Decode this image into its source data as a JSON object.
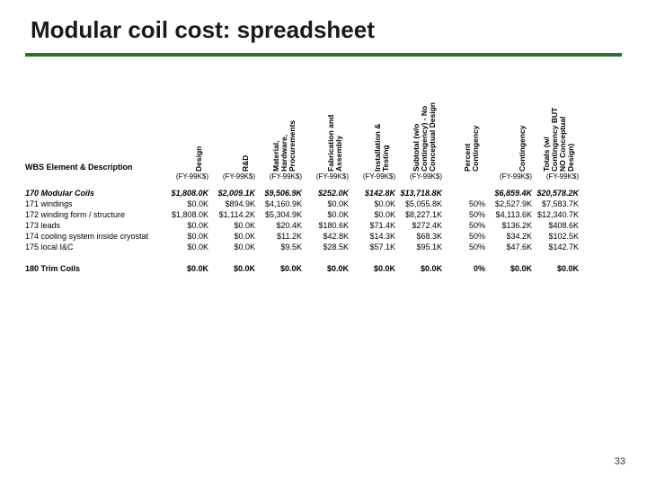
{
  "title": "Modular coil cost: spreadsheet",
  "page_number": "33",
  "colors": {
    "rule": "#2f6f2f",
    "text": "#000000",
    "bg": "#ffffff"
  },
  "headers": {
    "desc": "WBS Element & Description",
    "design": "Design",
    "rd": "R&D",
    "mat": "Material,\nHardware,\nProcurements",
    "fab": "Fabrication and\nAssembly",
    "inst": "Installation &\nTesting",
    "sub": "Subtotal (w/o\nContingency) - No\nConceptual Design",
    "pct": "Percent\nContingency",
    "cont": "Contingency",
    "tot": "Totals (w/\nContingency BUT\nNO Conceptual\nDesign)"
  },
  "unit": "(FY-99K$)",
  "rows": [
    {
      "bold": true,
      "ital": true,
      "desc": "170 Modular Coils",
      "design": "$1,808.0K",
      "rd": "$2,009.1K",
      "mat": "$9,506.9K",
      "fab": "$252.0K",
      "inst": "$142.8K",
      "sub": "$13,718.8K",
      "pct": "",
      "cont": "$6,859.4K",
      "tot": "$20,578.2K"
    },
    {
      "desc": "171 windings",
      "design": "$0.0K",
      "rd": "$894.9K",
      "mat": "$4,160.9K",
      "fab": "$0.0K",
      "inst": "$0.0K",
      "sub": "$5,055.8K",
      "pct": "50%",
      "cont": "$2,527.9K",
      "tot": "$7,583.7K"
    },
    {
      "desc": "172 winding form / structure",
      "design": "$1,808.0K",
      "rd": "$1,114.2K",
      "mat": "$5,304.9K",
      "fab": "$0.0K",
      "inst": "$0.0K",
      "sub": "$8,227.1K",
      "pct": "50%",
      "cont": "$4,113.6K",
      "tot": "$12,340.7K"
    },
    {
      "desc": "173 leads",
      "design": "$0.0K",
      "rd": "$0.0K",
      "mat": "$20.4K",
      "fab": "$180.6K",
      "inst": "$71.4K",
      "sub": "$272.4K",
      "pct": "50%",
      "cont": "$136.2K",
      "tot": "$408.6K"
    },
    {
      "desc": "174 cooling system inside cryostat",
      "design": "$0.0K",
      "rd": "$0.0K",
      "mat": "$11.2K",
      "fab": "$42.8K",
      "inst": "$14.3K",
      "sub": "$68.3K",
      "pct": "50%",
      "cont": "$34.2K",
      "tot": "$102.5K"
    },
    {
      "desc": "175 local I&C",
      "design": "$0.0K",
      "rd": "$0.0K",
      "mat": "$9.5K",
      "fab": "$28.5K",
      "inst": "$57.1K",
      "sub": "$95.1K",
      "pct": "50%",
      "cont": "$47.6K",
      "tot": "$142.7K"
    }
  ],
  "trim_row": {
    "bold": true,
    "desc": "180 Trim Coils",
    "design": "$0.0K",
    "rd": "$0.0K",
    "mat": "$0.0K",
    "fab": "$0.0K",
    "inst": "$0.0K",
    "sub": "$0.0K",
    "pct": "0%",
    "cont": "$0.0K",
    "tot": "$0.0K"
  }
}
